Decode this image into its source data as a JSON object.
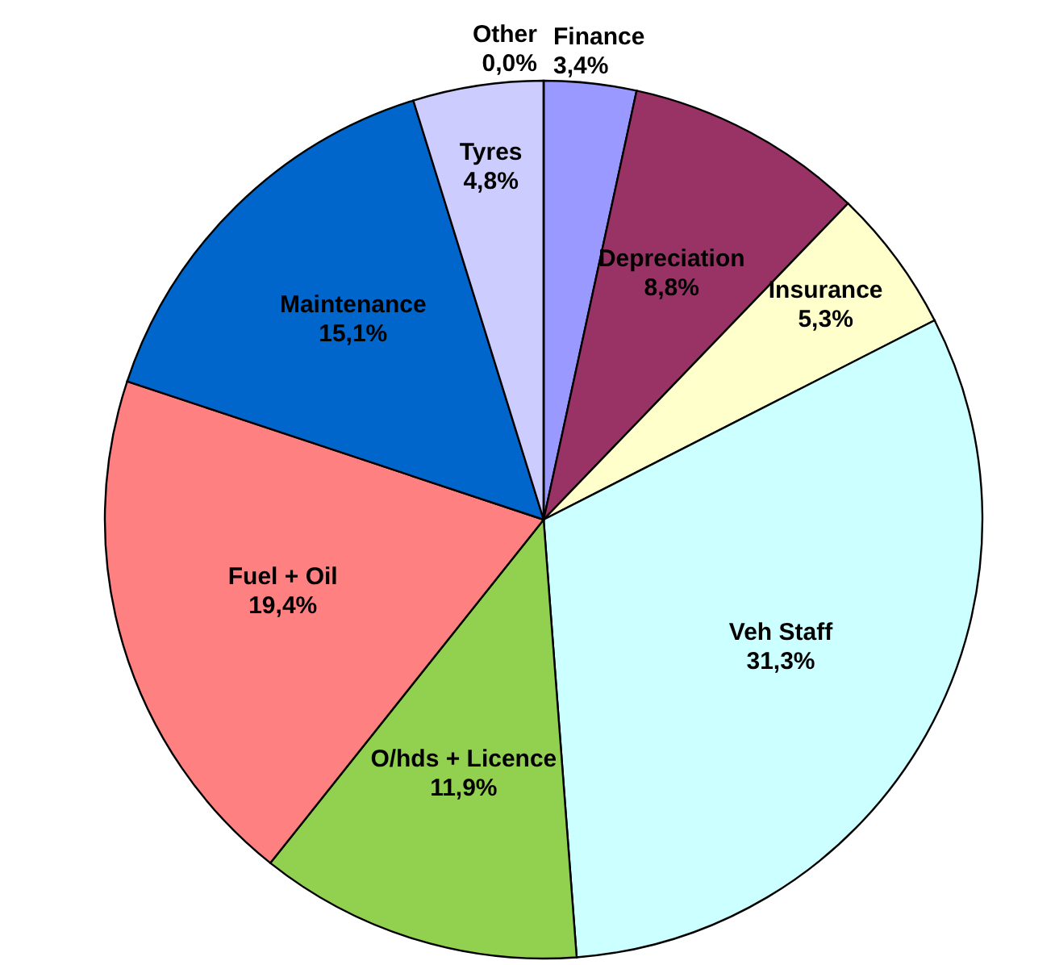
{
  "chart_data": {
    "type": "pie",
    "categories": [
      "Finance",
      "Depreciation",
      "Insurance",
      "Veh Staff",
      "O/hds + Licence",
      "Fuel + Oil",
      "Maintenance",
      "Tyres",
      "Other"
    ],
    "values": [
      3.4,
      8.8,
      5.3,
      31.3,
      11.9,
      19.4,
      15.1,
      4.8,
      0.0
    ],
    "colors": [
      "#9999ff",
      "#993366",
      "#ffffcc",
      "#ccffff",
      "#92d050",
      "#ff8080",
      "#0066cc",
      "#ccccff",
      "#ffffff"
    ],
    "value_labels": [
      "3,4%",
      "8,8%",
      "5,3%",
      "31,3%",
      "11,9%",
      "19,4%",
      "15,1%",
      "4,8%",
      "0,0%"
    ]
  }
}
